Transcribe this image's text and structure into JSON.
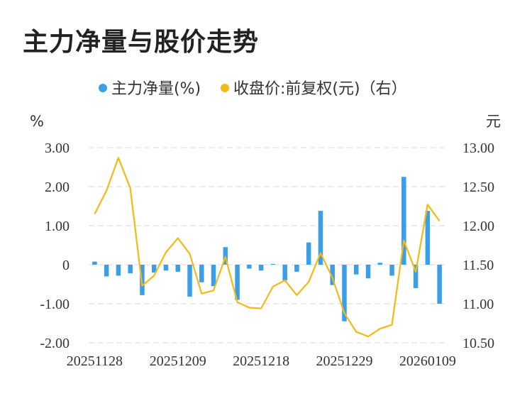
{
  "page": {
    "title": "主力净量与股价走势"
  },
  "chart_data": {
    "type": "bar+line",
    "title": "主力净量与股价走势",
    "legend": {
      "placement": "top-center",
      "items": [
        "主力净量(%)",
        "收盘价:前复权(元)（右）"
      ]
    },
    "y_left": {
      "unit": "%",
      "range": [
        -2,
        3
      ],
      "ticks": [
        "3.00",
        "2.00",
        "1.00",
        "0",
        "-1.00",
        "-2.00"
      ]
    },
    "y_right": {
      "unit": "元",
      "range": [
        10.5,
        13.0
      ],
      "ticks": [
        "13.00",
        "12.50",
        "12.00",
        "11.50",
        "11.00",
        "10.50"
      ]
    },
    "x_tick_labels": [
      "20251128",
      "20251209",
      "20251218",
      "20251229",
      "20260109"
    ],
    "x_tick_positions": [
      0,
      7,
      14,
      21,
      28
    ],
    "colors": {
      "bar": "#3a9ee8",
      "line": "#f5b914",
      "grid": "#e6e6e6"
    },
    "grid": true,
    "series": [
      {
        "name": "主力净量(%)",
        "type": "bar",
        "axis": "left",
        "values": [
          0.08,
          -0.3,
          -0.28,
          -0.22,
          -0.78,
          -0.2,
          -0.15,
          -0.18,
          -0.82,
          -0.45,
          -0.55,
          0.45,
          -0.9,
          -0.1,
          -0.15,
          0.02,
          -0.4,
          -0.18,
          0.57,
          1.38,
          -0.52,
          -1.45,
          -0.25,
          -0.35,
          0.05,
          -0.28,
          2.25,
          -0.6,
          1.38,
          -1.0
        ]
      },
      {
        "name": "收盘价:前复权(元)（右）",
        "type": "line",
        "axis": "right",
        "values": [
          12.15,
          12.45,
          12.87,
          12.48,
          11.23,
          11.36,
          11.66,
          11.84,
          11.64,
          11.13,
          11.17,
          11.6,
          11.02,
          10.95,
          10.94,
          11.22,
          11.3,
          11.11,
          11.28,
          11.65,
          11.33,
          10.88,
          10.64,
          10.58,
          10.68,
          10.73,
          11.81,
          11.41,
          12.27,
          12.06
        ]
      }
    ]
  }
}
